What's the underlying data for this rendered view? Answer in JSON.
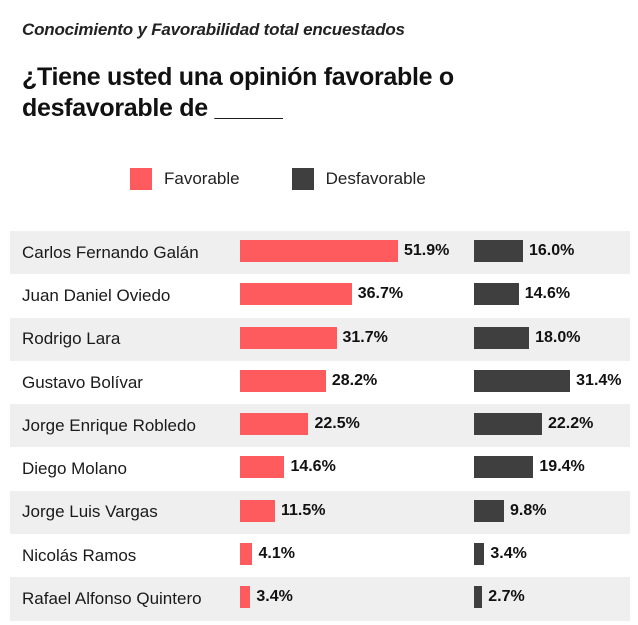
{
  "header": {
    "subtitle": "Conocimiento y Favorabilidad total encuestados",
    "title": "¿Tiene usted una opinión favorable o desfavorable de _____"
  },
  "colors": {
    "favorable": "#fe5b5f",
    "desfavorable": "#3f3f3f",
    "row_shade": "#efefef"
  },
  "chart_data": {
    "type": "bar",
    "orientation": "horizontal",
    "categories": [
      "Carlos Fernando Galán",
      "Juan Daniel Oviedo",
      "Rodrigo Lara",
      "Gustavo Bolívar",
      "Jorge Enrique Robledo",
      "Diego Molano",
      "Jorge Luis Vargas",
      "Nicolás Ramos",
      "Rafael Alfonso Quintero"
    ],
    "series": [
      {
        "name": "Favorable",
        "values": [
          51.9,
          36.7,
          31.7,
          28.2,
          22.5,
          14.6,
          11.5,
          4.1,
          3.4
        ],
        "labels": [
          "51.9%",
          "36.7%",
          "31.7%",
          "28.2%",
          "22.5%",
          "14.6%",
          "11.5%",
          "4.1%",
          "3.4%"
        ]
      },
      {
        "name": "Desfavorable",
        "values": [
          16.0,
          14.6,
          18.0,
          31.4,
          22.2,
          19.4,
          9.8,
          3.4,
          2.7
        ],
        "labels": [
          "16.0%",
          "14.6%",
          "18.0%",
          "31.4%",
          "22.2%",
          "19.4%",
          "9.8%",
          "3.4%",
          "2.7%"
        ]
      }
    ],
    "legend_position": "top",
    "grid": false
  }
}
